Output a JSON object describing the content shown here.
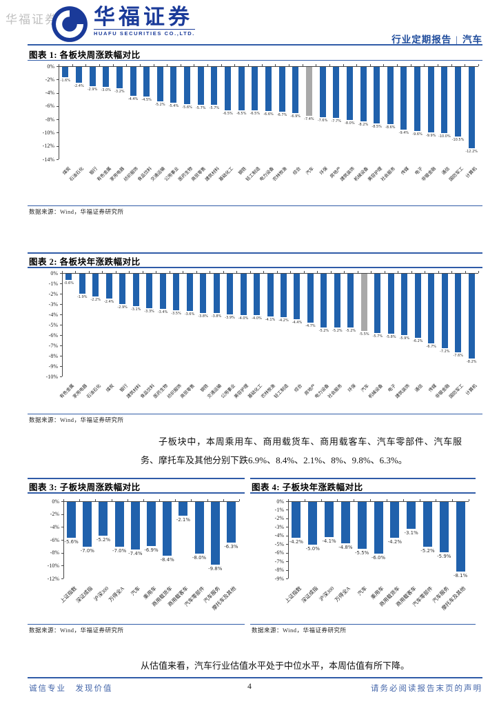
{
  "watermark": "华福证券",
  "header": {
    "logo_title": "华福证券",
    "logo_subtitle": "HUAFU SECURITIES CO.,LTD.",
    "doc_type": "行业定期报告",
    "separator": "|",
    "industry": "汽车"
  },
  "figures": [
    {
      "heading": "图表 1: 各板块周涨跌幅对比",
      "source": "数据来源：Wind，华福证券研究所"
    },
    {
      "heading": "图表 2: 各板块年涨跌幅对比",
      "source": "数据来源：Wind，华福证券研究所"
    },
    {
      "heading": "图表 3: 子板块周涨跌幅对比",
      "source": "数据来源：Wind，华福证券研究所"
    },
    {
      "heading": "图表 4: 子板块年涨跌幅对比",
      "source": "数据来源：Wind，华福证券研究所"
    }
  ],
  "paragraphs": {
    "subsector": "子板块中，本周乘用车、商用载货车、商用载客车、汽车零部件、汽车服务、摩托车及其他分别下跌6.9%、8.4%、2.1%、8%、9.8%、6.3%。",
    "valuation": "从估值来看，汽车行业估值水平处于中位水平，本周估值有所下降。"
  },
  "footer": {
    "left": "诚信专业　发现价值",
    "page": "4",
    "right": "请务必阅读报告末页的声明"
  },
  "colors": {
    "bar_blue": "#2061AC",
    "bar_gray": "#A9A9A9",
    "rule_blue": "#2F5BA7",
    "logo_blue": "#1A3A99"
  },
  "chart_data": [
    {
      "type": "bar",
      "title": "各板块周涨跌幅对比",
      "categories": [
        "煤炭",
        "石油石化",
        "银行",
        "有色金属",
        "家用电器",
        "纺织服饰",
        "食品饮料",
        "交通运输",
        "公用事业",
        "医药生物",
        "商贸零售",
        "建筑材料",
        "基础化工",
        "钢铁",
        "轻工制造",
        "电力设备",
        "农林牧渔",
        "综合",
        "汽车",
        "环保",
        "房地产",
        "建筑装饰",
        "机械设备",
        "美容护理",
        "社会服务",
        "传媒",
        "电子",
        "非银金融",
        "通信",
        "国防军工",
        "计算机"
      ],
      "values": [
        -1.6,
        -2.4,
        -2.9,
        -3.0,
        -3.2,
        -4.4,
        -4.5,
        -5.2,
        -5.4,
        -5.6,
        -5.7,
        -5.7,
        -6.5,
        -6.5,
        -6.5,
        -6.6,
        -6.7,
        -6.9,
        -7.4,
        -7.6,
        -7.7,
        -8.0,
        -8.2,
        -8.5,
        -8.6,
        -9.4,
        -9.6,
        -9.9,
        -10.0,
        -10.5,
        -12.2
      ],
      "highlight_category": "汽车",
      "bar_color": "#2061AC",
      "highlight_color": "#A9A9A9",
      "ylim": [
        -14,
        0
      ],
      "ytick_step": 2,
      "grid": false,
      "legend": "none",
      "xlabel": "",
      "ylabel": ""
    },
    {
      "type": "bar",
      "title": "各板块年涨跌幅对比",
      "categories": [
        "有色金属",
        "家用电器",
        "石油石化",
        "煤炭",
        "银行",
        "建筑材料",
        "食品饮料",
        "医药生物",
        "纺织服饰",
        "商贸零售",
        "钢铁",
        "交通运输",
        "公用事业",
        "美容护理",
        "基础化工",
        "农林牧渔",
        "轻工制造",
        "综合",
        "房地产",
        "电力设备",
        "社会服务",
        "环保",
        "汽车",
        "机械设备",
        "电子",
        "建筑装饰",
        "通信",
        "传媒",
        "非银金融",
        "国防军工",
        "计算机"
      ],
      "values": [
        -0.6,
        -1.9,
        -2.2,
        -2.4,
        -2.9,
        -3.1,
        -3.3,
        -3.4,
        -3.5,
        -3.6,
        -3.8,
        -3.8,
        -3.9,
        -4.0,
        -4.0,
        -4.1,
        -4.2,
        -4.4,
        -4.7,
        -5.2,
        -5.2,
        -5.2,
        -5.5,
        -5.7,
        -5.8,
        -5.9,
        -6.2,
        -6.7,
        -7.2,
        -7.6,
        -8.2
      ],
      "highlight_category": "汽车",
      "bar_color": "#2061AC",
      "highlight_color": "#A9A9A9",
      "ylim": [
        -10,
        0
      ],
      "ytick_step": 1,
      "grid": false,
      "legend": "none",
      "xlabel": "",
      "ylabel": ""
    },
    {
      "type": "bar",
      "title": "子板块周涨跌幅对比",
      "categories": [
        "上证指数",
        "深证成指",
        "沪深300",
        "万得全A",
        "汽车",
        "乘用车",
        "商用载货车",
        "商用载客车",
        "汽车零部件",
        "汽车服务",
        "摩托车及其他"
      ],
      "values": [
        -5.6,
        -7.0,
        -5.2,
        -7.0,
        -7.4,
        -6.9,
        -8.4,
        -2.1,
        -8.0,
        -9.8,
        -6.3
      ],
      "highlight_category": "",
      "bar_color": "#2061AC",
      "highlight_color": "#A9A9A9",
      "ylim": [
        -12,
        0
      ],
      "ytick_step": 2,
      "grid": false,
      "legend": "none",
      "xlabel": "",
      "ylabel": ""
    },
    {
      "type": "bar",
      "title": "子板块年涨跌幅对比",
      "categories": [
        "上证指数",
        "深证成指",
        "沪深300",
        "万得全A",
        "汽车",
        "乘用车",
        "商用载货车",
        "商用载客车",
        "汽车零部件",
        "汽车服务",
        "摩托车及其他"
      ],
      "values": [
        -4.2,
        -5.0,
        -4.1,
        -4.8,
        -5.5,
        -6.0,
        -4.2,
        -3.1,
        -5.2,
        -5.9,
        -8.1
      ],
      "highlight_category": "",
      "bar_color": "#2061AC",
      "highlight_color": "#A9A9A9",
      "ylim": [
        -9,
        0
      ],
      "ytick_step": 1,
      "grid": false,
      "legend": "none",
      "xlabel": "",
      "ylabel": ""
    }
  ]
}
